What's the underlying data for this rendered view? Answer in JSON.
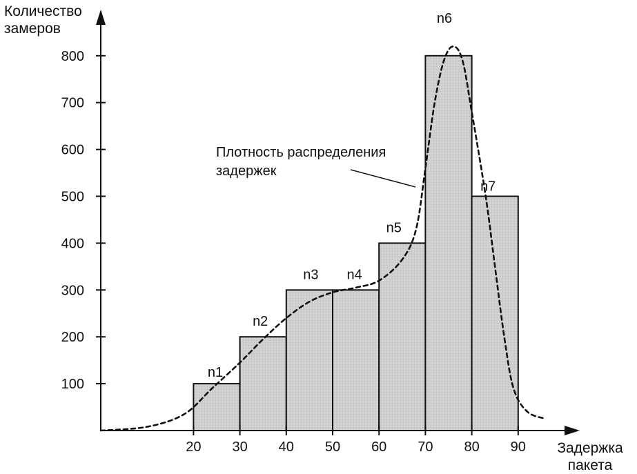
{
  "chart_data": {
    "type": "bar",
    "ylabel_line1": "Количество",
    "ylabel_line2": "замеров",
    "xlabel_line1": "Задержка",
    "xlabel_line2": "пакета",
    "x_ticks": [
      "20",
      "30",
      "40",
      "50",
      "60",
      "70",
      "80",
      "90"
    ],
    "y_ticks": [
      "100",
      "200",
      "300",
      "400",
      "500",
      "600",
      "700",
      "800"
    ],
    "xlim": [
      0,
      90
    ],
    "ylim": [
      0,
      850
    ],
    "bars": [
      {
        "label": "n1",
        "x0": 20,
        "x1": 30,
        "value": 100
      },
      {
        "label": "n2",
        "x0": 30,
        "x1": 40,
        "value": 200
      },
      {
        "label": "n3",
        "x0": 40,
        "x1": 50,
        "value": 300
      },
      {
        "label": "n4",
        "x0": 50,
        "x1": 60,
        "value": 300
      },
      {
        "label": "n5",
        "x0": 60,
        "x1": 70,
        "value": 400
      },
      {
        "label": "n6",
        "x0": 70,
        "x1": 80,
        "value": 800
      },
      {
        "label": "n7",
        "x0": 80,
        "x1": 90,
        "value": 500
      }
    ],
    "density_curve": {
      "points": [
        [
          0,
          0
        ],
        [
          10,
          8
        ],
        [
          18,
          35
        ],
        [
          24,
          90
        ],
        [
          30,
          145
        ],
        [
          35,
          195
        ],
        [
          40,
          240
        ],
        [
          45,
          275
        ],
        [
          50,
          295
        ],
        [
          55,
          305
        ],
        [
          60,
          320
        ],
        [
          65,
          365
        ],
        [
          68,
          430
        ],
        [
          70,
          560
        ],
        [
          72,
          700
        ],
        [
          74,
          790
        ],
        [
          76,
          820
        ],
        [
          78,
          790
        ],
        [
          80,
          680
        ],
        [
          83,
          500
        ],
        [
          85,
          350
        ],
        [
          87,
          200
        ],
        [
          89,
          90
        ],
        [
          92,
          40
        ],
        [
          96,
          25
        ]
      ]
    },
    "annotation_line1": "Плотность распределения",
    "annotation_line2": "задержек",
    "grid": false,
    "legend": "none"
  }
}
